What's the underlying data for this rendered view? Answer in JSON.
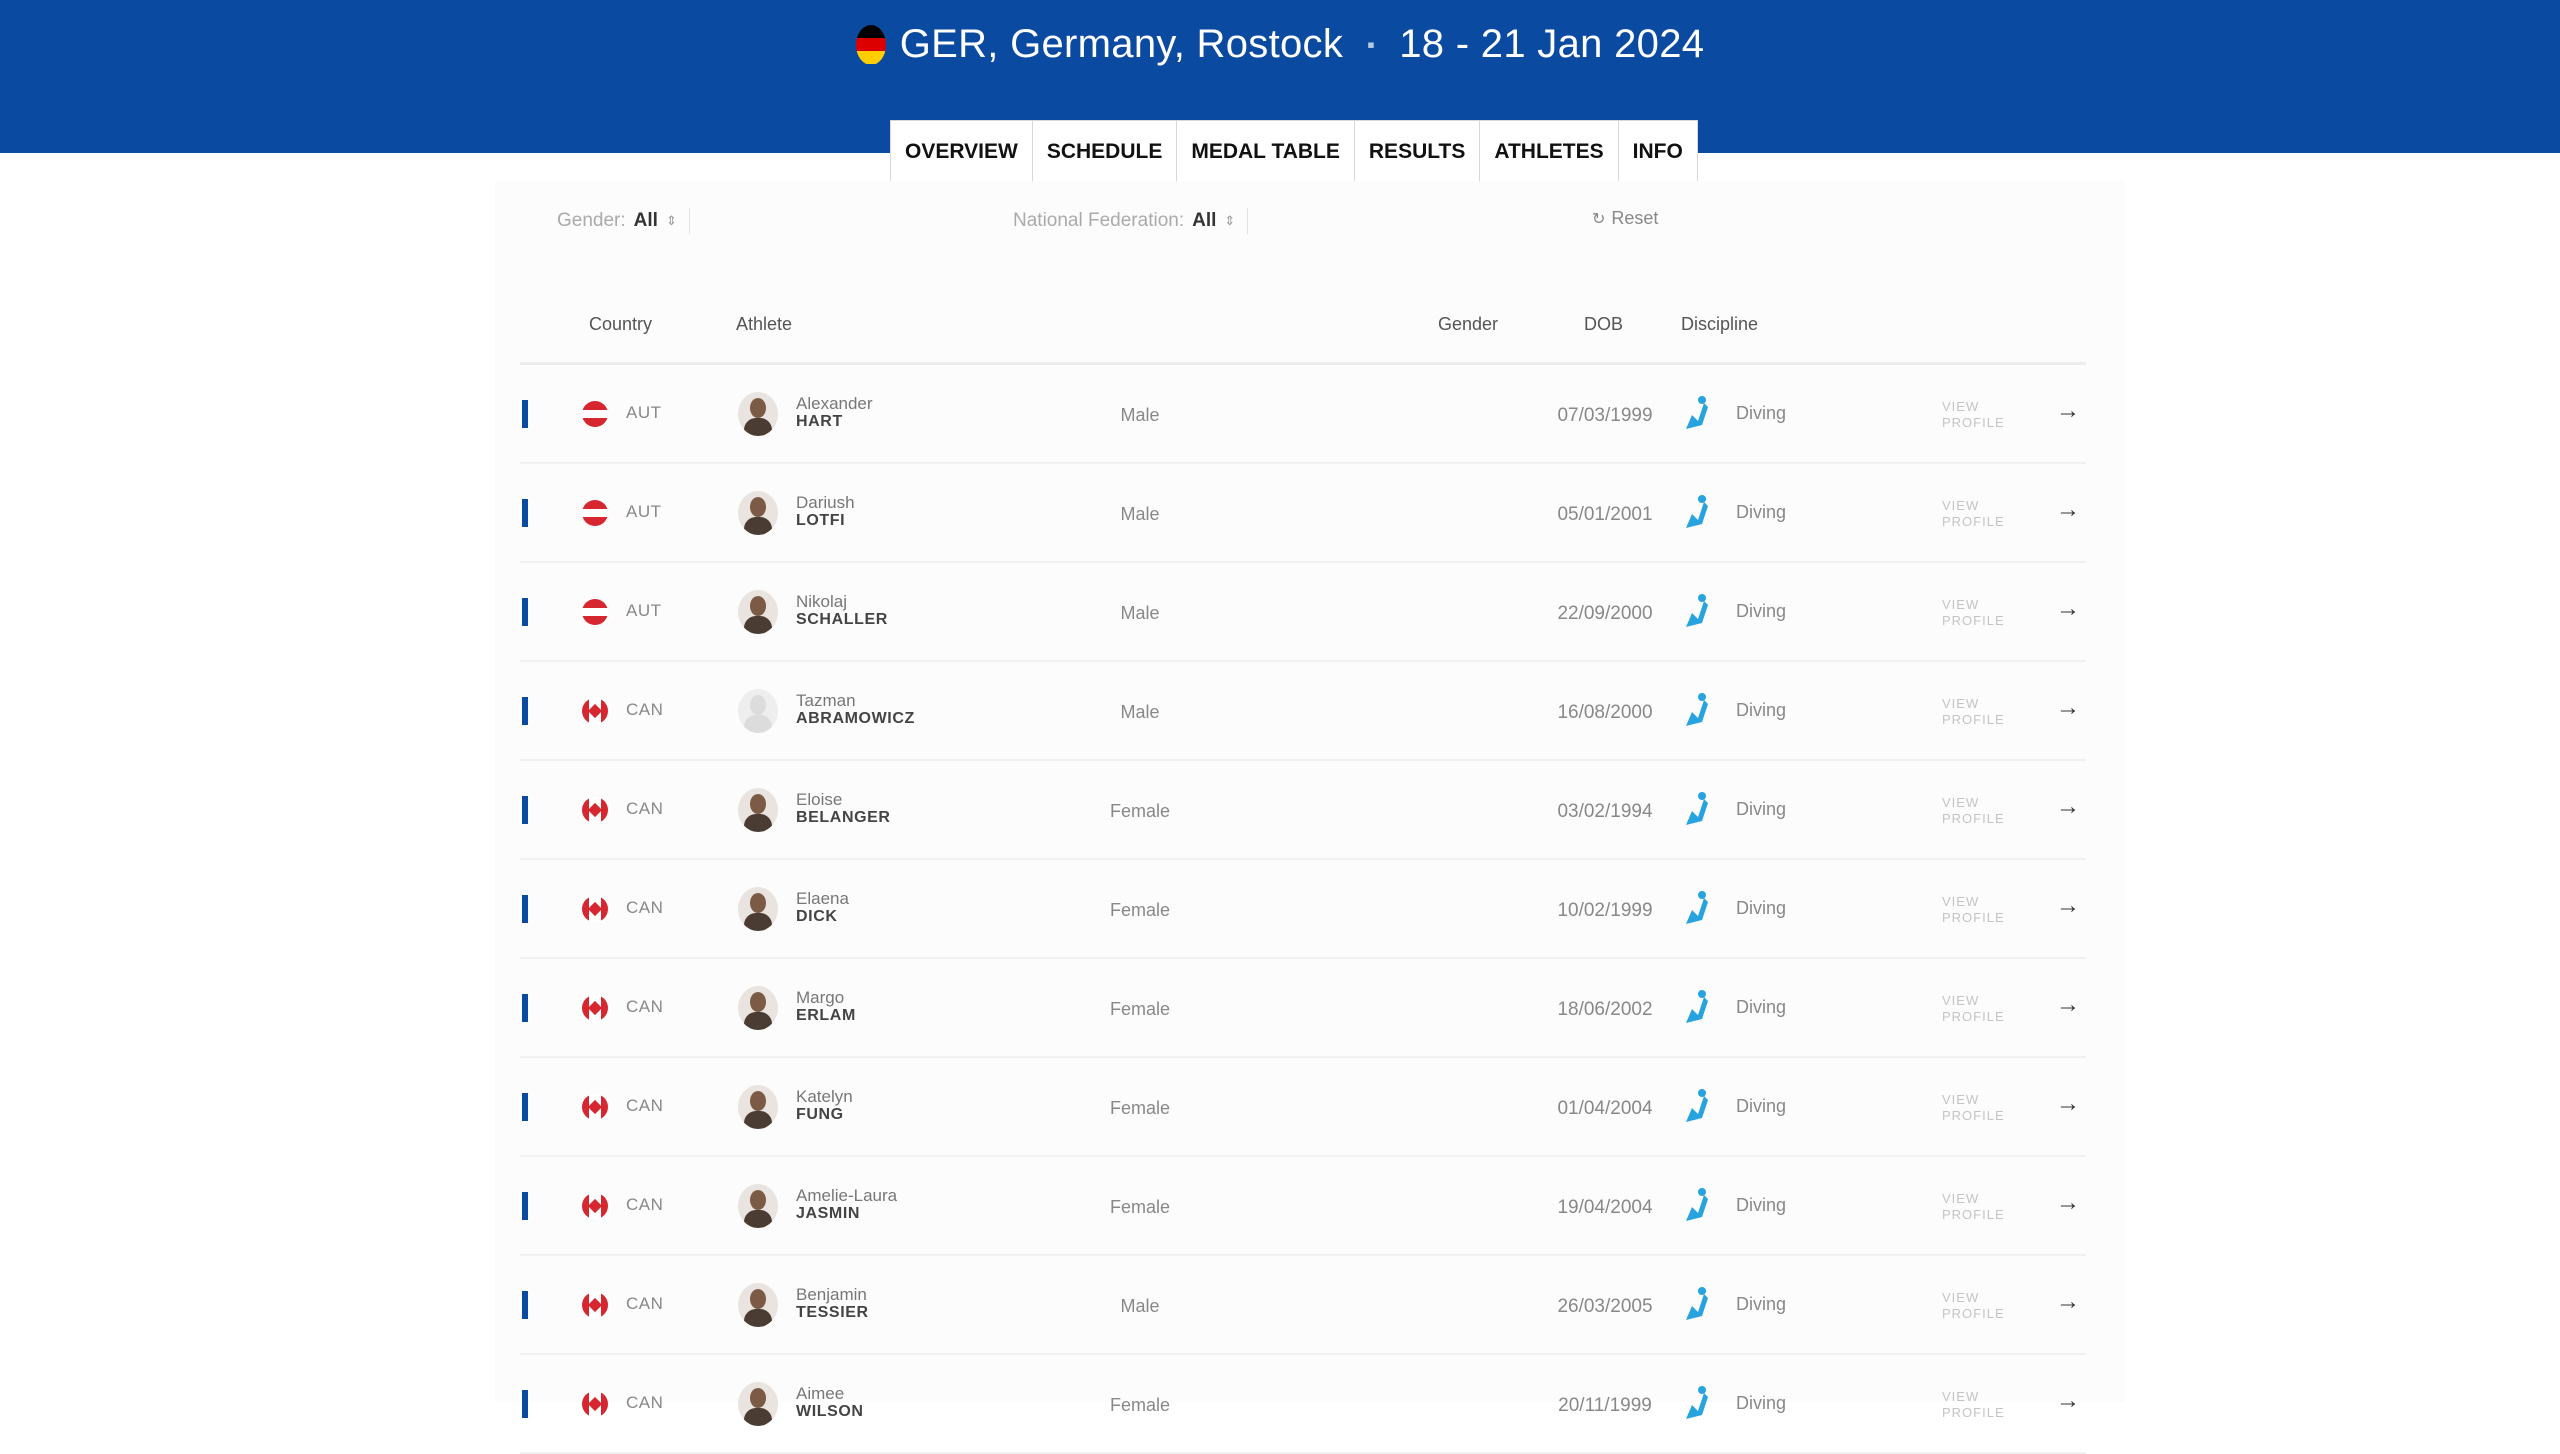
{
  "event": {
    "title": "GER, Germany, Rostock",
    "dates": "18 - 21 Jan 2024",
    "flag_colors": [
      "#000000",
      "#dd0000",
      "#ffce00"
    ]
  },
  "tabs": [
    "OVERVIEW",
    "SCHEDULE",
    "MEDAL TABLE",
    "RESULTS",
    "ATHLETES",
    "INFO"
  ],
  "filters": {
    "gender_label": "Gender:",
    "gender_value": "All",
    "federation_label": "National Federation:",
    "federation_value": "All",
    "reset_label": "Reset"
  },
  "columns": {
    "country": "Country",
    "athlete": "Athlete",
    "gender": "Gender",
    "dob": "DOB",
    "discipline": "Discipline"
  },
  "view_profile_label": [
    "VIEW",
    "PROFILE"
  ],
  "athletes": [
    {
      "country": "AUT",
      "flag": "aut",
      "first": "Alexander",
      "last": "HART",
      "gender": "Male",
      "dob": "07/03/1999",
      "discipline": "Diving",
      "photo": true
    },
    {
      "country": "AUT",
      "flag": "aut",
      "first": "Dariush",
      "last": "LOTFI",
      "gender": "Male",
      "dob": "05/01/2001",
      "discipline": "Diving",
      "photo": true
    },
    {
      "country": "AUT",
      "flag": "aut",
      "first": "Nikolaj",
      "last": "SCHALLER",
      "gender": "Male",
      "dob": "22/09/2000",
      "discipline": "Diving",
      "photo": true
    },
    {
      "country": "CAN",
      "flag": "can",
      "first": "Tazman",
      "last": "ABRAMOWICZ",
      "gender": "Male",
      "dob": "16/08/2000",
      "discipline": "Diving",
      "photo": false
    },
    {
      "country": "CAN",
      "flag": "can",
      "first": "Eloise",
      "last": "BELANGER",
      "gender": "Female",
      "dob": "03/02/1994",
      "discipline": "Diving",
      "photo": true
    },
    {
      "country": "CAN",
      "flag": "can",
      "first": "Elaena",
      "last": "DICK",
      "gender": "Female",
      "dob": "10/02/1999",
      "discipline": "Diving",
      "photo": true
    },
    {
      "country": "CAN",
      "flag": "can",
      "first": "Margo",
      "last": "ERLAM",
      "gender": "Female",
      "dob": "18/06/2002",
      "discipline": "Diving",
      "photo": true
    },
    {
      "country": "CAN",
      "flag": "can",
      "first": "Katelyn",
      "last": "FUNG",
      "gender": "Female",
      "dob": "01/04/2004",
      "discipline": "Diving",
      "photo": true
    },
    {
      "country": "CAN",
      "flag": "can",
      "first": "Amelie-Laura",
      "last": "JASMIN",
      "gender": "Female",
      "dob": "19/04/2004",
      "discipline": "Diving",
      "photo": true
    },
    {
      "country": "CAN",
      "flag": "can",
      "first": "Benjamin",
      "last": "TESSIER",
      "gender": "Male",
      "dob": "26/03/2005",
      "discipline": "Diving",
      "photo": true
    },
    {
      "country": "CAN",
      "flag": "can",
      "first": "Aimee",
      "last": "WILSON",
      "gender": "Female",
      "dob": "20/11/1999",
      "discipline": "Diving",
      "photo": true
    }
  ],
  "colors": {
    "banner": "#0b4aa1",
    "discipline_icon": "#27a3e0",
    "row_marker": "#0b4aa1"
  }
}
